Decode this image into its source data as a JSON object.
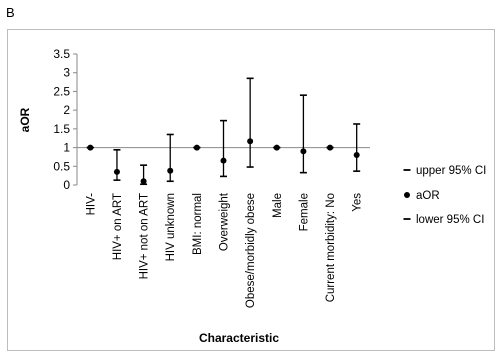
{
  "panel_label": "B",
  "chart_data": {
    "type": "scatter",
    "title": "",
    "xlabel": "Characteristic",
    "ylabel": "aOR",
    "ylim": [
      0,
      3.5
    ],
    "yticks": [
      0,
      0.5,
      1,
      1.5,
      2,
      2.5,
      3,
      3.5
    ],
    "ytick_labels": [
      "0",
      "0.5",
      "1",
      "1.5",
      "2",
      "2.5",
      "3",
      "3.5"
    ],
    "reference_line": 1,
    "grid": false,
    "legend_position": "right",
    "categories": [
      "HIV-",
      "HIV+ on ART",
      "HIV+ not on ART",
      "HIV unknown",
      "BMI: normal",
      "Overweight",
      "Obese/morbidly obese",
      "Male",
      "Female",
      "Current morbidity: No",
      "Yes"
    ],
    "series": [
      {
        "name": "upper 95% CI",
        "values": [
          1,
          0.94,
          0.53,
          1.35,
          1,
          1.72,
          2.85,
          1,
          2.4,
          1,
          1.63
        ]
      },
      {
        "name": "aOR",
        "values": [
          1,
          0.35,
          0.1,
          0.38,
          1,
          0.65,
          1.17,
          1,
          0.9,
          1,
          0.8
        ]
      },
      {
        "name": "lower 95% CI",
        "values": [
          1,
          0.13,
          0.02,
          0.1,
          1,
          0.23,
          0.48,
          1,
          0.33,
          1,
          0.37
        ]
      }
    ]
  }
}
